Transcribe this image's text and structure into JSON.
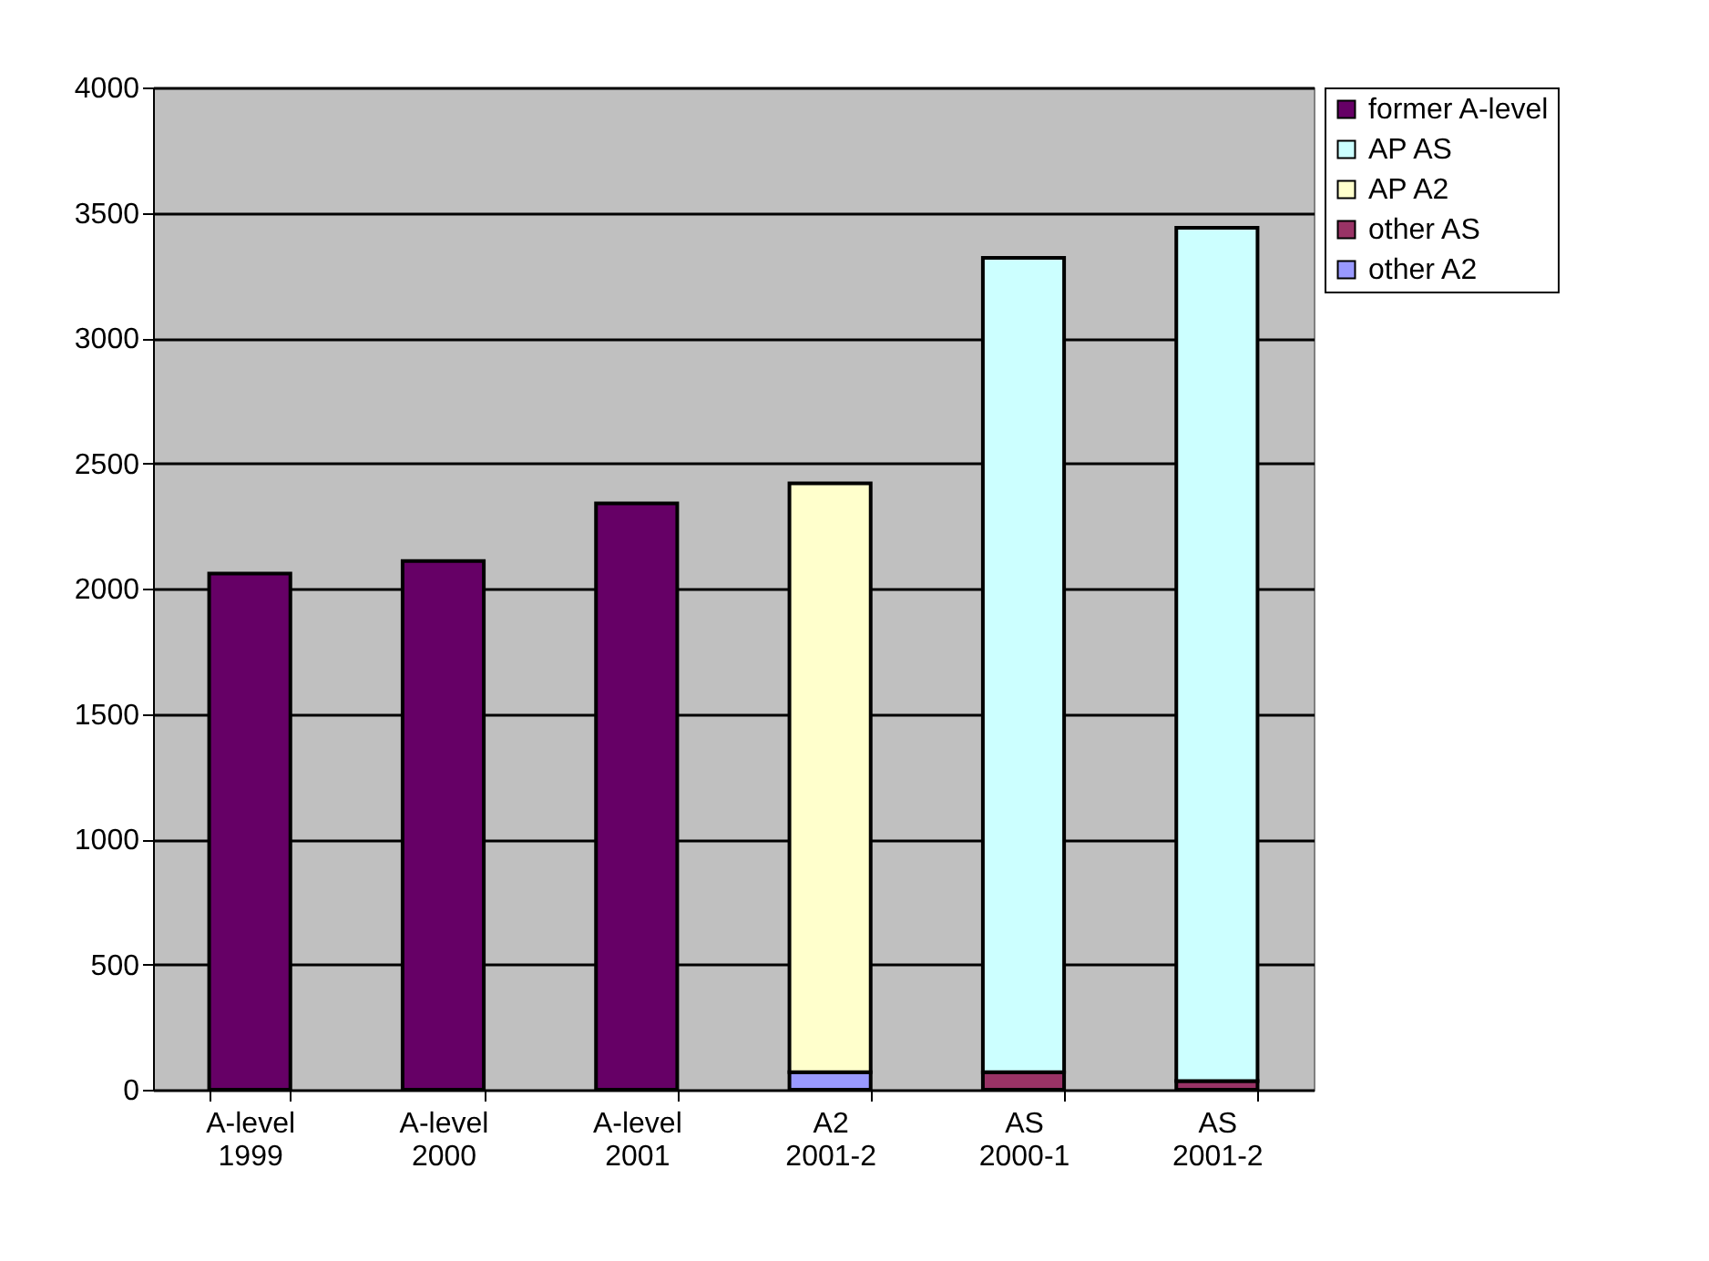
{
  "chart_data": {
    "type": "bar",
    "stacked": true,
    "categories": [
      "A-level 1999",
      "A-level 2000",
      "A-level 2001",
      "A2 2001-2",
      "AS 2000-1",
      "AS 2001-2"
    ],
    "series": [
      {
        "name": "other A2",
        "color": "#9999ff",
        "values": [
          null,
          null,
          null,
          70,
          null,
          null
        ]
      },
      {
        "name": "other AS",
        "color": "#993366",
        "values": [
          null,
          null,
          null,
          null,
          70,
          35
        ]
      },
      {
        "name": "AP A2",
        "color": "#ffffcc",
        "values": [
          null,
          null,
          null,
          2350,
          null,
          null
        ]
      },
      {
        "name": "AP AS",
        "color": "#ccffff",
        "values": [
          null,
          null,
          null,
          null,
          3250,
          3405
        ]
      },
      {
        "name": "former A-level",
        "color": "#660066",
        "values": [
          2060,
          2110,
          2340,
          null,
          null,
          null
        ]
      }
    ],
    "ylim": [
      0,
      4000
    ],
    "yticks": [
      0,
      500,
      1000,
      1500,
      2000,
      2500,
      3000,
      3500,
      4000
    ],
    "grid": "y",
    "legend": "right"
  }
}
